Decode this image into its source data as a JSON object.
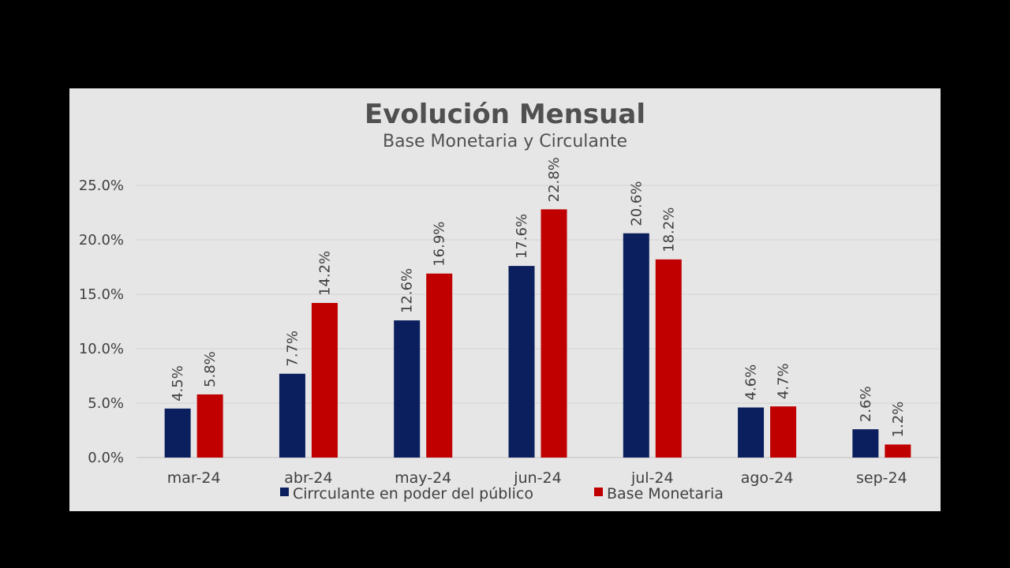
{
  "chart_data": {
    "type": "bar",
    "title": "Evolución Mensual",
    "subtitle": "Base Monetaria y Circulante",
    "categories": [
      "mar-24",
      "abr-24",
      "may-24",
      "jun-24",
      "jul-24",
      "ago-24",
      "sep-24"
    ],
    "series": [
      {
        "name": "Cirrculante en poder del público",
        "color": "#0b1f5e",
        "values": [
          4.5,
          7.7,
          12.6,
          17.6,
          20.6,
          4.6,
          2.6
        ],
        "labels": [
          "4.5%",
          "7.7%",
          "12.6%",
          "17.6%",
          "20.6%",
          "4.6%",
          "2.6%"
        ]
      },
      {
        "name": "Base Monetaria",
        "color": "#c00000",
        "values": [
          5.8,
          14.2,
          16.9,
          22.8,
          18.2,
          4.7,
          1.2
        ],
        "labels": [
          "5.8%",
          "14.2%",
          "16.9%",
          "22.8%",
          "18.2%",
          "4.7%",
          "1.2%"
        ]
      }
    ],
    "ylim": [
      0,
      25
    ],
    "yticks": [
      0,
      5,
      10,
      15,
      20,
      25
    ],
    "ytick_labels": [
      "0.0%",
      "5.0%",
      "10.0%",
      "15.0%",
      "20.0%",
      "25.0%"
    ],
    "xlabel": "",
    "ylabel": "",
    "grid": true,
    "legend_position": "bottom"
  }
}
